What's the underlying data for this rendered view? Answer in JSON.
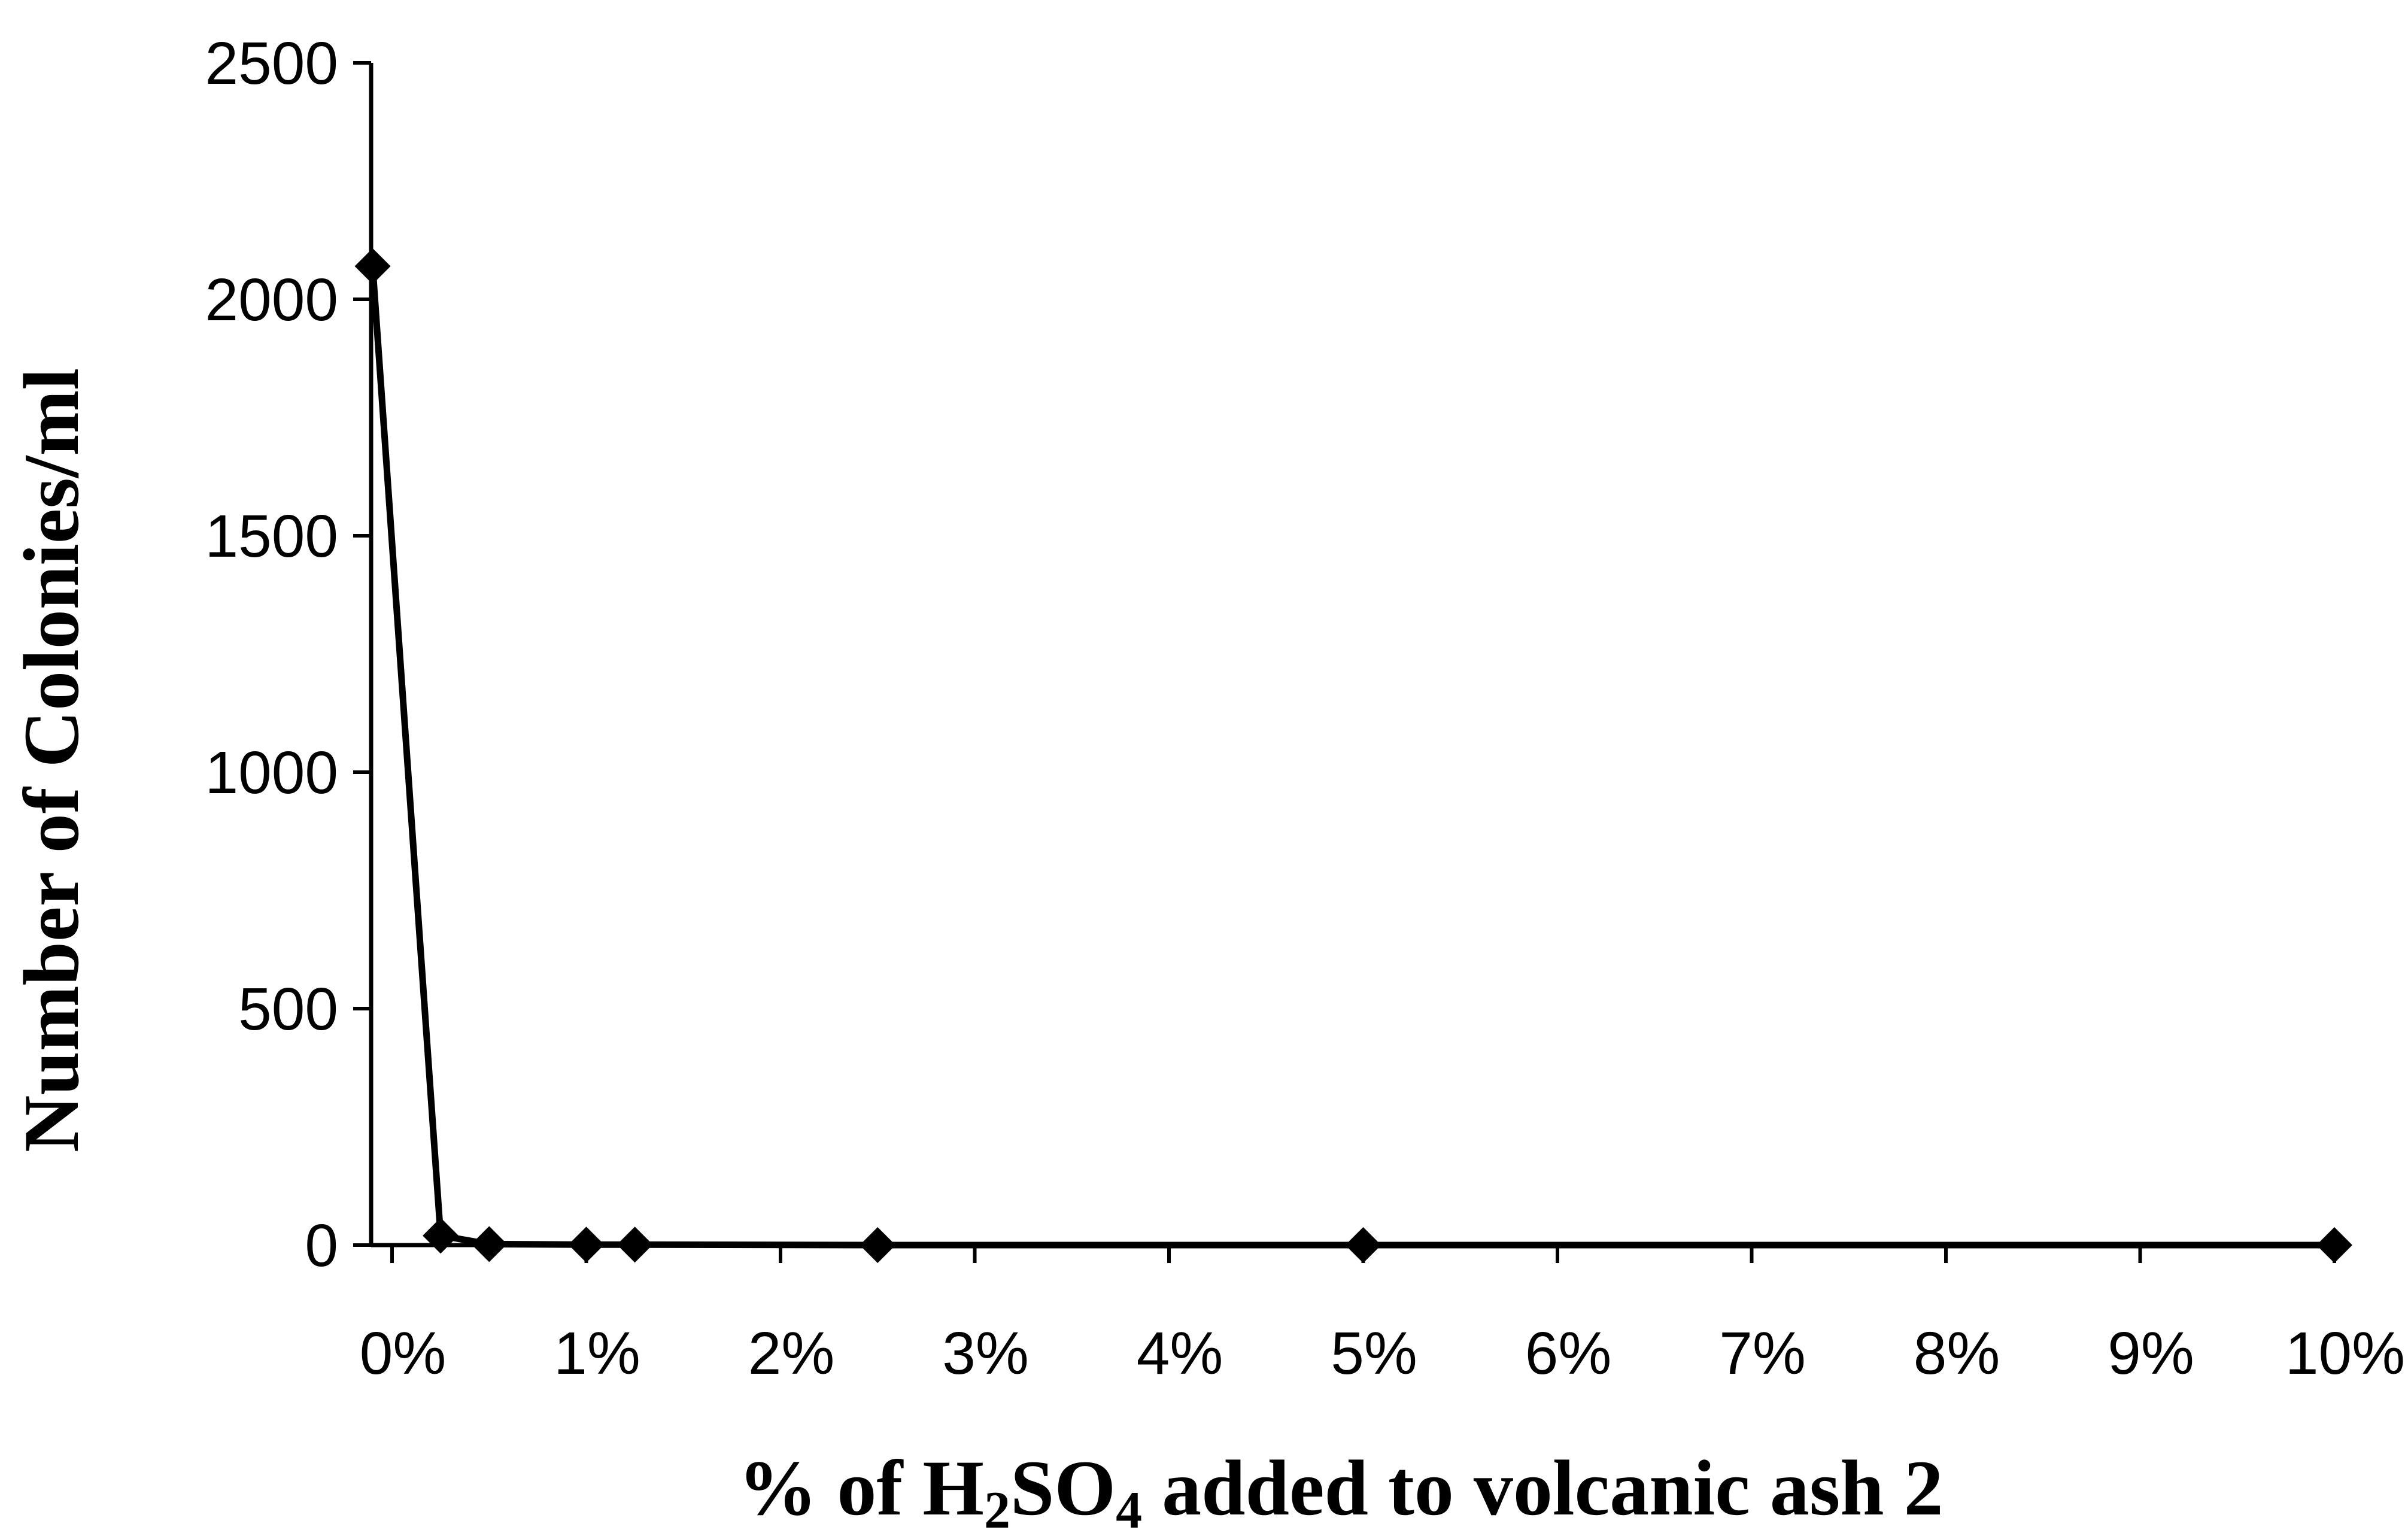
{
  "chart_data": {
    "type": "line",
    "title": "",
    "xlabel": "% of H2SO4 added to volcanic ash 2",
    "xlabel_parts": {
      "prefix": "% of H",
      "sub1": "2",
      "mid": "SO",
      "sub2": "4",
      "suffix": " added to volcanic ash 2"
    },
    "ylabel": "Number of Colonies/ml",
    "xlim": [
      0,
      10
    ],
    "ylim": [
      0,
      2500
    ],
    "x_ticks": [
      0,
      1,
      2,
      3,
      4,
      5,
      6,
      7,
      8,
      9,
      10
    ],
    "x_tick_labels": [
      "0%",
      "1%",
      "2%",
      "3%",
      "4%",
      "5%",
      "6%",
      "7%",
      "8%",
      "9%",
      "10%"
    ],
    "y_ticks": [
      0,
      500,
      1000,
      1500,
      2000,
      2500
    ],
    "y_tick_labels": [
      "0",
      "500",
      "1000",
      "1500",
      "2000",
      "2500"
    ],
    "grid": false,
    "legend": "none",
    "series": [
      {
        "color": "#000000",
        "marker": "diamond",
        "points": [
          {
            "x": -0.1,
            "y": 2070
          },
          {
            "x": 0.25,
            "y": 20
          },
          {
            "x": 0.5,
            "y": 2
          },
          {
            "x": 1.0,
            "y": 1
          },
          {
            "x": 1.25,
            "y": 1
          },
          {
            "x": 2.5,
            "y": 0
          },
          {
            "x": 5.0,
            "y": 0
          },
          {
            "x": 10.0,
            "y": 0
          }
        ]
      }
    ]
  }
}
